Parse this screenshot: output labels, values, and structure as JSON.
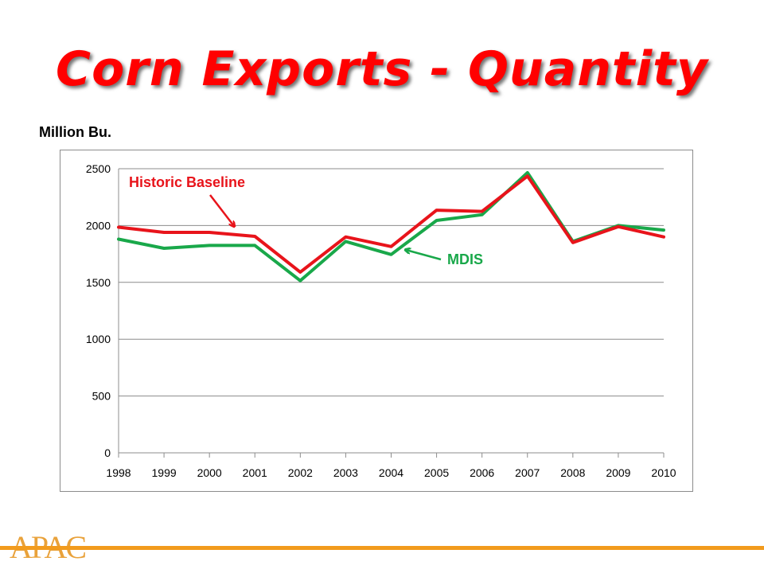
{
  "slide": {
    "title": "Corn Exports - Quantity",
    "unit_label": "Million Bu.",
    "logo_text": "APAC"
  },
  "colors": {
    "title": "#ff0000",
    "historic": "#e8141b",
    "mdis": "#19a84a",
    "grid": "#8c8c8c",
    "footer_bar": "#f29b1d"
  },
  "chart_data": {
    "type": "line",
    "x": [
      "1998",
      "1999",
      "2000",
      "2001",
      "2002",
      "2003",
      "2004",
      "2005",
      "2006",
      "2007",
      "2008",
      "2009",
      "2010"
    ],
    "series": [
      {
        "name": "Historic Baseline",
        "color": "#e8141b",
        "values": [
          1985,
          1940,
          1940,
          1905,
          1590,
          1900,
          1815,
          2135,
          2125,
          2435,
          1850,
          1990,
          1900
        ]
      },
      {
        "name": "MDIS",
        "color": "#19a84a",
        "values": [
          1880,
          1800,
          1825,
          1825,
          1515,
          1860,
          1745,
          2045,
          2095,
          2465,
          1860,
          2000,
          1960
        ]
      }
    ],
    "ylim": [
      0,
      2500
    ],
    "yticks": [
      "0",
      "500",
      "1000",
      "1500",
      "2000",
      "2500"
    ],
    "grid": true,
    "legend": "inline annotations with arrows"
  }
}
